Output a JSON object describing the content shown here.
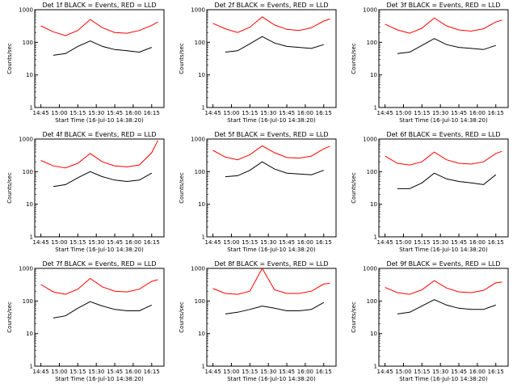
{
  "figure": {
    "xlabel": "Start Time (16-Jul-10 14:38:20)",
    "ylabel": "Counts/sec",
    "colors": {
      "events": "#000000",
      "lld": "#ff0000",
      "axes": "#000000",
      "background": "#ffffff"
    }
  },
  "chart_data": [
    {
      "type": "line",
      "title": "Det 1f BLACK = Events, RED = LLD",
      "xlabel": "Start Time (16-Jul-10 14:38:20)",
      "ylabel": "Counts/sec",
      "x_ticks": [
        "14:45",
        "15:00",
        "15:15",
        "15:30",
        "15:45",
        "16:00",
        "16:15"
      ],
      "y_ticks": [
        "1",
        "10",
        "100",
        "1000"
      ],
      "ylim": [
        1,
        1000
      ],
      "yscale": "log",
      "x": [
        0,
        10,
        20,
        30,
        40,
        50,
        60,
        70,
        80,
        90,
        95
      ],
      "series": [
        {
          "name": "Events",
          "color": "#000000",
          "values": [
            null,
            40,
            45,
            75,
            110,
            75,
            60,
            55,
            50,
            70,
            null
          ]
        },
        {
          "name": "LLD",
          "color": "#ff0000",
          "values": [
            320,
            210,
            160,
            230,
            500,
            280,
            200,
            190,
            230,
            330,
            420
          ]
        }
      ]
    },
    {
      "type": "line",
      "title": "Det 2f BLACK = Events, RED = LLD",
      "xlabel": "Start Time (16-Jul-10 14:38:20)",
      "ylabel": "Counts/sec",
      "x_ticks": [
        "14:45",
        "15:00",
        "15:15",
        "15:30",
        "15:45",
        "16:00",
        "16:15"
      ],
      "y_ticks": [
        "1",
        "10",
        "100",
        "1000"
      ],
      "ylim": [
        1,
        1000
      ],
      "yscale": "log",
      "x": [
        0,
        10,
        20,
        30,
        40,
        50,
        60,
        70,
        80,
        90,
        95
      ],
      "series": [
        {
          "name": "Events",
          "color": "#000000",
          "values": [
            null,
            50,
            55,
            90,
            150,
            95,
            75,
            70,
            65,
            85,
            null
          ]
        },
        {
          "name": "LLD",
          "color": "#ff0000",
          "values": [
            380,
            260,
            200,
            290,
            600,
            340,
            250,
            230,
            280,
            450,
            520
          ]
        }
      ]
    },
    {
      "type": "line",
      "title": "Det 3f BLACK = Events, RED = LLD",
      "xlabel": "Start Time (16-Jul-10 14:38:20)",
      "ylabel": "Counts/sec",
      "x_ticks": [
        "14:45",
        "15:00",
        "15:15",
        "15:30",
        "15:45",
        "16:00",
        "16:15"
      ],
      "y_ticks": [
        "1",
        "10",
        "100",
        "1000"
      ],
      "ylim": [
        1,
        1000
      ],
      "yscale": "log",
      "x": [
        0,
        10,
        20,
        30,
        40,
        50,
        60,
        70,
        80,
        90,
        95
      ],
      "series": [
        {
          "name": "Events",
          "color": "#000000",
          "values": [
            null,
            45,
            50,
            80,
            130,
            85,
            70,
            65,
            60,
            80,
            null
          ]
        },
        {
          "name": "LLD",
          "color": "#ff0000",
          "values": [
            360,
            240,
            190,
            270,
            560,
            320,
            240,
            220,
            260,
            420,
            480
          ]
        }
      ]
    },
    {
      "type": "line",
      "title": "Det 4f BLACK = Events, RED = LLD",
      "xlabel": "Start Time (16-Jul-10 14:38:20)",
      "ylabel": "Counts/sec",
      "x_ticks": [
        "14:45",
        "15:00",
        "15:15",
        "15:30",
        "15:45",
        "16:00",
        "16:15"
      ],
      "y_ticks": [
        "1",
        "10",
        "100",
        "1000"
      ],
      "ylim": [
        1,
        1000
      ],
      "yscale": "log",
      "x": [
        0,
        10,
        20,
        30,
        40,
        50,
        60,
        70,
        80,
        90,
        95
      ],
      "series": [
        {
          "name": "Events",
          "color": "#000000",
          "values": [
            null,
            35,
            40,
            65,
            100,
            70,
            55,
            50,
            55,
            90,
            null
          ]
        },
        {
          "name": "LLD",
          "color": "#ff0000",
          "values": [
            220,
            150,
            130,
            180,
            360,
            200,
            150,
            140,
            160,
            380,
            900
          ]
        }
      ]
    },
    {
      "type": "line",
      "title": "Det 5f BLACK = Events, RED = LLD",
      "xlabel": "Start Time (16-Jul-10 14:38:20)",
      "ylabel": "Counts/sec",
      "x_ticks": [
        "14:45",
        "15:00",
        "15:15",
        "15:30",
        "15:45",
        "16:00",
        "16:15"
      ],
      "y_ticks": [
        "1",
        "10",
        "100",
        "1000"
      ],
      "ylim": [
        1,
        1000
      ],
      "yscale": "log",
      "x": [
        0,
        10,
        20,
        30,
        40,
        50,
        60,
        70,
        80,
        90,
        95
      ],
      "series": [
        {
          "name": "Events",
          "color": "#000000",
          "values": [
            null,
            70,
            75,
            110,
            200,
            120,
            90,
            85,
            80,
            110,
            null
          ]
        },
        {
          "name": "LLD",
          "color": "#ff0000",
          "values": [
            450,
            280,
            230,
            330,
            620,
            380,
            270,
            260,
            300,
            500,
            600
          ]
        }
      ]
    },
    {
      "type": "line",
      "title": "Det 6f BLACK = Events, RED = LLD",
      "xlabel": "Start Time (16-Jul-10 14:38:20)",
      "ylabel": "Counts/sec",
      "x_ticks": [
        "14:45",
        "15:00",
        "15:15",
        "15:30",
        "15:45",
        "16:00",
        "16:15"
      ],
      "y_ticks": [
        "1",
        "10",
        "100",
        "1000"
      ],
      "ylim": [
        1,
        1000
      ],
      "yscale": "log",
      "x": [
        0,
        10,
        20,
        30,
        40,
        50,
        60,
        70,
        80,
        90,
        95
      ],
      "series": [
        {
          "name": "Events",
          "color": "#000000",
          "values": [
            null,
            30,
            30,
            45,
            90,
            60,
            50,
            45,
            40,
            80,
            null
          ]
        },
        {
          "name": "LLD",
          "color": "#ff0000",
          "values": [
            300,
            180,
            160,
            200,
            400,
            230,
            180,
            170,
            200,
            360,
            420
          ]
        }
      ]
    },
    {
      "type": "line",
      "title": "Det 7f BLACK = Events, RED = LLD",
      "xlabel": "Start Time (16-Jul-10 14:38:20)",
      "ylabel": "Counts/sec",
      "x_ticks": [
        "14:45",
        "15:00",
        "15:15",
        "15:30",
        "15:45",
        "16:00",
        "16:15"
      ],
      "y_ticks": [
        "1",
        "10",
        "100",
        "1000"
      ],
      "ylim": [
        1,
        1000
      ],
      "yscale": "log",
      "x": [
        0,
        10,
        20,
        30,
        40,
        50,
        60,
        70,
        80,
        90,
        95
      ],
      "series": [
        {
          "name": "Events",
          "color": "#000000",
          "values": [
            null,
            30,
            35,
            60,
            95,
            70,
            55,
            50,
            50,
            75,
            null
          ]
        },
        {
          "name": "LLD",
          "color": "#ff0000",
          "values": [
            320,
            190,
            160,
            230,
            490,
            270,
            200,
            190,
            230,
            400,
            450
          ]
        }
      ]
    },
    {
      "type": "line",
      "title": "Det 8f BLACK = Events, RED = LLD",
      "xlabel": "Start Time (16-Jul-10 14:38:20)",
      "ylabel": "Counts/sec",
      "x_ticks": [
        "14:45",
        "15:00",
        "15:15",
        "15:30",
        "15:45",
        "16:00",
        "16:15"
      ],
      "y_ticks": [
        "1",
        "10",
        "100",
        "1000"
      ],
      "ylim": [
        1,
        1000
      ],
      "yscale": "log",
      "x": [
        0,
        10,
        20,
        30,
        40,
        50,
        60,
        70,
        80,
        90,
        95
      ],
      "series": [
        {
          "name": "Events",
          "color": "#000000",
          "values": [
            null,
            40,
            45,
            55,
            70,
            60,
            50,
            50,
            55,
            90,
            null
          ]
        },
        {
          "name": "LLD",
          "color": "#ff0000",
          "values": [
            240,
            170,
            160,
            200,
            1000,
            220,
            170,
            170,
            200,
            330,
            350
          ]
        }
      ]
    },
    {
      "type": "line",
      "title": "Det 9f BLACK = Events, RED = LLD",
      "xlabel": "Start Time (16-Jul-10 14:38:20)",
      "ylabel": "Counts/sec",
      "x_ticks": [
        "14:45",
        "15:00",
        "15:15",
        "15:30",
        "15:45",
        "16:00",
        "16:15"
      ],
      "y_ticks": [
        "1",
        "10",
        "100",
        "1000"
      ],
      "ylim": [
        1,
        1000
      ],
      "yscale": "log",
      "x": [
        0,
        10,
        20,
        30,
        40,
        50,
        60,
        70,
        80,
        90,
        95
      ],
      "series": [
        {
          "name": "Events",
          "color": "#000000",
          "values": [
            null,
            40,
            45,
            70,
            110,
            75,
            60,
            55,
            55,
            75,
            null
          ]
        },
        {
          "name": "LLD",
          "color": "#ff0000",
          "values": [
            260,
            180,
            160,
            220,
            420,
            250,
            190,
            180,
            210,
            360,
            380
          ]
        }
      ]
    }
  ]
}
